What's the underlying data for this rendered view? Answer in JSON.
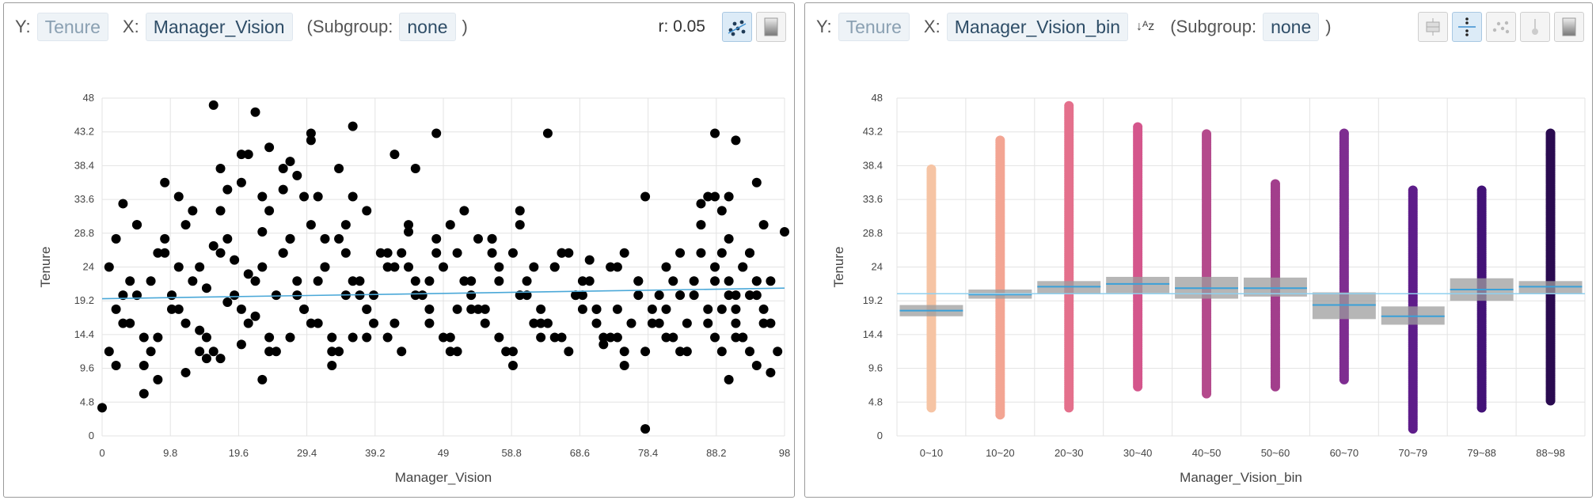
{
  "left_panel": {
    "y_label": "Y:",
    "y_value": "Tenure",
    "x_label": "X:",
    "x_value": "Manager_Vision",
    "subgroup_open": "(Subgroup:",
    "subgroup_value": "none",
    "subgroup_close": ")",
    "correlation": "r: 0.05",
    "buttons": [
      {
        "icon": "scatter-plot-icon",
        "active": true
      },
      {
        "icon": "gradient-fill-icon",
        "active": false
      }
    ]
  },
  "right_panel": {
    "y_label": "Y:",
    "y_value": "Tenure",
    "x_label": "X:",
    "x_value": "Manager_Vision_bin",
    "sort_icon": "sort-az-icon",
    "subgroup_open": "(Subgroup:",
    "subgroup_value": "none",
    "subgroup_close": ")",
    "buttons": [
      {
        "icon": "boxplot-icon",
        "active": false
      },
      {
        "icon": "strip-plot-icon",
        "active": true
      },
      {
        "icon": "scatter-plot-icon",
        "active": false
      },
      {
        "icon": "lollipop-icon",
        "active": false
      },
      {
        "icon": "gradient-fill-icon",
        "active": false
      }
    ]
  },
  "chart_data": [
    {
      "type": "scatter",
      "xlabel": "Manager_Vision",
      "ylabel": "Tenure",
      "xlim": [
        0,
        98
      ],
      "ylim": [
        0,
        48
      ],
      "xticks": [
        "0",
        "9.8",
        "19.6",
        "29.4",
        "39.2",
        "49",
        "58.8",
        "68.6",
        "78.4",
        "88.2",
        "98"
      ],
      "yticks": [
        "0",
        "4.8",
        "9.6",
        "14.4",
        "19.2",
        "24",
        "28.8",
        "33.6",
        "38.4",
        "43.2",
        "48"
      ],
      "grid": true,
      "trend_line": {
        "from": [
          0,
          19.5
        ],
        "to": [
          98,
          21
        ],
        "color": "#4aa8d8"
      },
      "point_color": "#000000",
      "x": [
        0,
        1,
        2,
        3,
        4,
        5,
        6,
        7,
        8,
        9,
        10,
        11,
        12,
        13,
        14,
        15,
        16,
        17,
        18,
        19,
        20,
        21,
        22,
        23,
        24,
        25,
        26,
        27,
        28,
        29,
        30,
        31,
        32,
        33,
        34,
        35,
        36,
        37,
        38,
        40,
        42,
        44,
        46,
        48,
        50,
        52,
        54,
        56,
        58,
        60,
        62,
        64,
        66,
        68,
        70,
        72,
        74,
        76,
        78,
        80,
        82,
        84,
        86,
        88,
        89,
        90,
        91,
        92,
        93,
        94,
        95,
        96,
        97,
        98,
        2,
        4,
        6,
        8,
        10,
        12,
        14,
        16,
        18,
        20,
        22,
        24,
        26,
        28,
        30,
        32,
        34,
        36,
        38,
        41,
        43,
        45,
        47,
        49,
        51,
        53,
        55,
        57,
        59,
        61,
        63,
        65,
        67,
        69,
        71,
        73,
        75,
        77,
        79,
        81,
        83,
        85,
        87,
        88,
        89,
        90,
        91,
        92,
        93,
        94,
        95,
        1,
        3,
        5,
        7,
        9,
        11,
        13,
        15,
        17,
        19,
        21,
        23,
        25,
        27,
        29,
        31,
        33,
        35,
        37,
        39,
        41,
        43,
        45,
        47,
        49,
        51,
        53,
        55,
        57,
        59,
        61,
        63,
        65,
        67,
        69,
        71,
        73,
        75,
        77,
        79,
        81,
        83,
        85,
        87,
        88,
        89,
        90,
        91,
        92,
        93,
        94,
        2,
        5,
        8,
        11,
        14,
        17,
        20,
        23,
        26,
        29,
        32,
        35,
        38,
        41,
        44,
        47,
        50,
        53,
        56,
        59,
        62,
        65,
        68,
        71,
        74,
        77,
        80,
        83,
        86,
        88,
        90,
        92,
        94,
        96,
        3,
        6,
        9,
        12,
        15,
        18,
        21,
        24,
        27,
        30,
        33,
        36,
        39,
        42,
        45,
        48,
        51,
        54,
        57,
        60,
        63,
        66,
        69,
        72,
        75,
        78,
        81,
        84,
        87,
        89,
        91,
        93,
        95,
        16,
        20,
        22,
        24,
        27,
        30,
        36,
        42,
        48,
        64,
        78,
        88,
        91,
        17,
        23,
        26,
        28,
        31,
        34,
        38,
        44,
        50,
        52,
        56,
        60,
        66,
        70,
        74,
        82,
        86,
        90,
        94,
        96
      ],
      "y": [
        4,
        12,
        28,
        20,
        16,
        30,
        10,
        22,
        14,
        26,
        18,
        24,
        9,
        32,
        15,
        21,
        27,
        11,
        19,
        25,
        13,
        23,
        17,
        29,
        12,
        20,
        26,
        14,
        22,
        18,
        30,
        16,
        24,
        10,
        28,
        20,
        14,
        22,
        18,
        26,
        16,
        24,
        20,
        28,
        14,
        22,
        18,
        26,
        12,
        20,
        24,
        16,
        14,
        20,
        22,
        13,
        18,
        16,
        1,
        20,
        14,
        12,
        26,
        22,
        18,
        28,
        14,
        24,
        20,
        10,
        16,
        22,
        12,
        29,
        18,
        22,
        14,
        26,
        20,
        16,
        24,
        12,
        28,
        18,
        22,
        14,
        26,
        20,
        16,
        24,
        12,
        22,
        18,
        14,
        26,
        20,
        16,
        24,
        12,
        22,
        18,
        14,
        26,
        20,
        16,
        24,
        12,
        22,
        18,
        14,
        26,
        20,
        16,
        24,
        12,
        22,
        18,
        14,
        26,
        20,
        16,
        24,
        12,
        22,
        18,
        24,
        16,
        20,
        12,
        28,
        18,
        22,
        14,
        26,
        20,
        16,
        24,
        12,
        28,
        18,
        22,
        14,
        26,
        20,
        16,
        24,
        12,
        22,
        18,
        14,
        26,
        20,
        16,
        24,
        12,
        22,
        18,
        14,
        26,
        20,
        16,
        24,
        12,
        22,
        18,
        14,
        26,
        20,
        16,
        24,
        12,
        22,
        18,
        14,
        26,
        20,
        10,
        30,
        8,
        34,
        12,
        32,
        36,
        8,
        38,
        34,
        28,
        30,
        14,
        26,
        30,
        22,
        12,
        18,
        28,
        10,
        16,
        24,
        20,
        18,
        14,
        22,
        16,
        20,
        30,
        34,
        8,
        14,
        22,
        16,
        33,
        6,
        36,
        30,
        11,
        35,
        40,
        32,
        28,
        42,
        12,
        34,
        20,
        24,
        38,
        26,
        18,
        28,
        22,
        30,
        14,
        26,
        18,
        14,
        10,
        12,
        18,
        16,
        34,
        32,
        20,
        26,
        30,
        47,
        40,
        46,
        41,
        39,
        43,
        44,
        40,
        43,
        43,
        34,
        43,
        42,
        38,
        34,
        35,
        37,
        34,
        38,
        32,
        29,
        30,
        32,
        28,
        32,
        26,
        25,
        24,
        22,
        33,
        34,
        36,
        9
      ]
    },
    {
      "type": "strip",
      "xlabel": "Manager_Vision_bin",
      "ylabel": "Tenure",
      "ylim": [
        0,
        48
      ],
      "yticks": [
        "0",
        "4.8",
        "9.6",
        "14.4",
        "19.2",
        "24",
        "28.8",
        "33.6",
        "38.4",
        "43.2",
        "48"
      ],
      "categories": [
        "0~10",
        "10~20",
        "20~30",
        "30~40",
        "40~50",
        "50~60",
        "60~70",
        "70~79",
        "79~88",
        "88~98"
      ],
      "colors": [
        "#f6c4a4",
        "#f3a593",
        "#e4708c",
        "#d4568c",
        "#b44a8c",
        "#a23e8c",
        "#7e2d90",
        "#5e1d8a",
        "#431277",
        "#2a0b50"
      ],
      "range_min": [
        4,
        3,
        4,
        7,
        6,
        7,
        8,
        1,
        4,
        5
      ],
      "range_max": [
        38,
        42,
        47,
        44,
        43,
        36,
        43,
        35,
        35,
        43
      ],
      "outliers": [
        [],
        [],
        [],
        [],
        [],
        [],
        [
          43
        ],
        [],
        [
          4
        ],
        [
          43,
          40
        ]
      ],
      "mean": [
        17.8,
        20.1,
        21.2,
        21.6,
        21.0,
        21.0,
        18.6,
        17.0,
        20.8,
        21.2
      ],
      "ci_low": [
        17,
        19.5,
        20.2,
        20.3,
        19.5,
        19.8,
        16.6,
        15.8,
        19.2,
        20.2
      ],
      "ci_high": [
        18.6,
        20.8,
        22,
        22.6,
        22.6,
        22.5,
        20.4,
        18.4,
        22.4,
        22
      ],
      "overall_mean": 20.2,
      "grid": true
    }
  ]
}
